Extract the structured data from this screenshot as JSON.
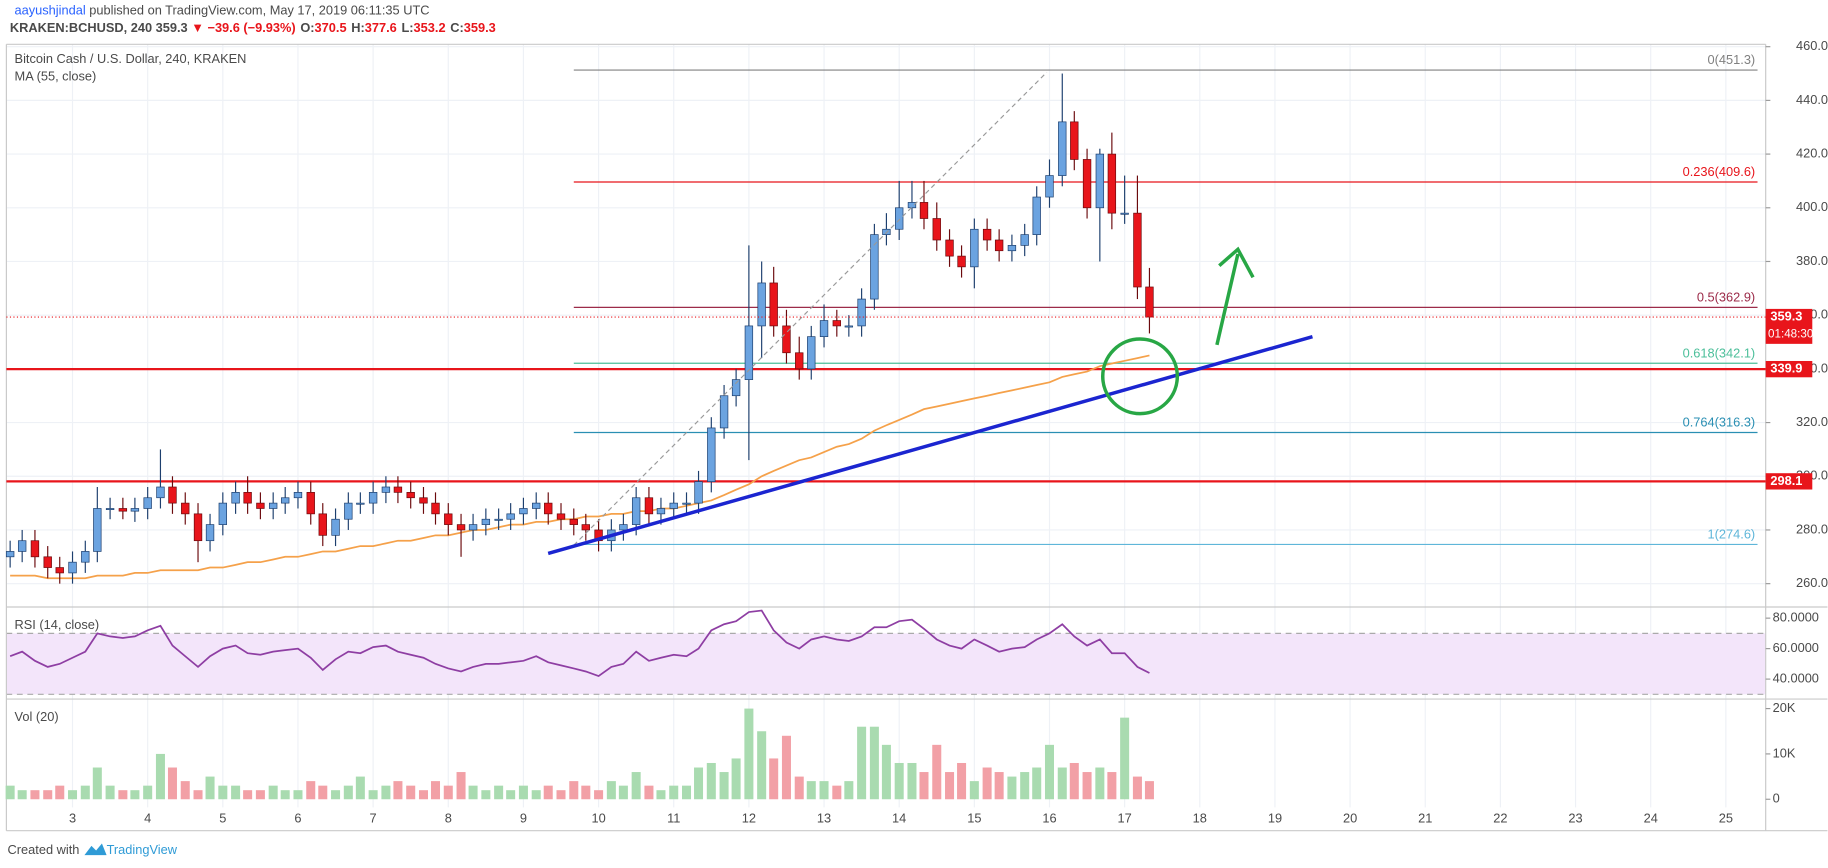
{
  "header": {
    "author": "aayushjindal",
    "published": "published on TradingView.com, May 17, 2019 06:11:35 UTC",
    "symbol": "KRAKEN:BCHUSD, 240",
    "price": "359.3",
    "change": "▼ −39.6 (−9.93%)",
    "ohlc": [
      {
        "label": "O:",
        "value": "370.5"
      },
      {
        "label": "H:",
        "value": "377.6"
      },
      {
        "label": "L:",
        "value": "353.2"
      },
      {
        "label": "C:",
        "value": "359.3"
      }
    ]
  },
  "chart_data": {
    "type": "candlestick",
    "title": "Bitcoin Cash / U.S. Dollar, 240, KRAKEN",
    "up_color": "#6ba3e0",
    "down_color": "#e8151b",
    "grid": true,
    "x": [
      2.17,
      2.33,
      2.5,
      2.67,
      2.83,
      3,
      3.17,
      3.33,
      3.5,
      3.67,
      3.83,
      4,
      4.17,
      4.33,
      4.5,
      4.67,
      4.83,
      5,
      5.17,
      5.33,
      5.5,
      5.67,
      5.83,
      6,
      6.17,
      6.33,
      6.5,
      6.67,
      6.83,
      7,
      7.17,
      7.33,
      7.5,
      7.67,
      7.83,
      8,
      8.17,
      8.33,
      8.5,
      8.67,
      8.83,
      9,
      9.17,
      9.33,
      9.5,
      9.67,
      9.83,
      10,
      10.17,
      10.33,
      10.5,
      10.67,
      10.83,
      11,
      11.17,
      11.33,
      11.5,
      11.67,
      11.83,
      12,
      12.17,
      12.33,
      12.5,
      12.67,
      12.83,
      13,
      13.17,
      13.33,
      13.5,
      13.67,
      13.83,
      14,
      14.17,
      14.33,
      14.5,
      14.67,
      14.83,
      15,
      15.17,
      15.33,
      15.5,
      15.67,
      15.83,
      16,
      16.17,
      16.33,
      16.5,
      16.67,
      16.83,
      17,
      17.17,
      17.33
    ],
    "open": [
      270,
      272,
      276,
      270,
      266,
      264,
      268,
      272,
      288,
      288,
      287,
      288,
      292,
      296,
      290,
      286,
      276,
      282,
      290,
      294,
      290,
      288,
      290,
      292,
      294,
      286,
      278,
      284,
      290,
      290,
      294,
      296,
      294,
      292,
      290,
      286,
      282,
      280,
      282,
      284,
      284,
      286,
      288,
      290,
      286,
      284,
      282,
      280,
      276,
      280,
      282,
      292,
      286,
      288,
      290,
      290,
      298,
      318,
      330,
      336,
      356,
      372,
      356,
      346,
      340,
      352,
      358,
      356,
      356,
      366,
      390,
      392,
      400,
      402,
      396,
      388,
      382,
      378,
      392,
      388,
      384,
      386,
      390,
      404,
      412,
      432,
      418,
      400,
      420,
      398,
      398,
      370.5
    ],
    "high": [
      276,
      280,
      280,
      274,
      270,
      272,
      276,
      296,
      292,
      292,
      292,
      296,
      310,
      300,
      294,
      290,
      286,
      294,
      298,
      300,
      294,
      294,
      296,
      298,
      298,
      290,
      288,
      294,
      294,
      298,
      300,
      300,
      298,
      296,
      294,
      290,
      286,
      286,
      288,
      288,
      290,
      292,
      294,
      294,
      290,
      288,
      286,
      284,
      284,
      286,
      296,
      296,
      292,
      294,
      294,
      302,
      322,
      334,
      340,
      386,
      380,
      378,
      362,
      352,
      356,
      364,
      362,
      360,
      370,
      394,
      398,
      410,
      410,
      410,
      402,
      392,
      386,
      396,
      396,
      392,
      390,
      394,
      408,
      418,
      450,
      436,
      422,
      422,
      428,
      412,
      412,
      377.6
    ],
    "low": [
      266,
      268,
      266,
      262,
      260,
      260,
      264,
      268,
      284,
      284,
      283,
      284,
      288,
      286,
      282,
      268,
      272,
      278,
      286,
      286,
      284,
      284,
      286,
      288,
      282,
      274,
      274,
      280,
      286,
      286,
      290,
      290,
      288,
      286,
      282,
      278,
      270,
      276,
      278,
      280,
      280,
      282,
      284,
      282,
      280,
      278,
      276,
      272,
      272,
      276,
      278,
      282,
      282,
      284,
      286,
      286,
      294,
      314,
      326,
      306,
      344,
      352,
      342,
      336,
      336,
      348,
      352,
      352,
      352,
      362,
      386,
      388,
      396,
      392,
      384,
      378,
      374,
      370,
      384,
      380,
      380,
      382,
      386,
      400,
      408,
      414,
      396,
      380,
      392,
      394,
      366,
      353.2
    ],
    "close": [
      272,
      276,
      270,
      266,
      264,
      268,
      272,
      288,
      288,
      287,
      288,
      292,
      296,
      290,
      286,
      276,
      282,
      290,
      294,
      290,
      288,
      290,
      292,
      294,
      286,
      278,
      284,
      290,
      290,
      294,
      296,
      294,
      292,
      290,
      286,
      282,
      280,
      282,
      284,
      284,
      286,
      288,
      290,
      286,
      284,
      282,
      280,
      276,
      280,
      282,
      292,
      286,
      288,
      290,
      290,
      298,
      318,
      330,
      336,
      356,
      372,
      356,
      346,
      340,
      352,
      358,
      356,
      356,
      366,
      390,
      392,
      400,
      402,
      396,
      388,
      382,
      378,
      392,
      388,
      384,
      386,
      390,
      404,
      412,
      432,
      418,
      400,
      420,
      398,
      398,
      370.5,
      359.3
    ],
    "ma": {
      "name": "MA (55, close)",
      "color": "#f5a14a",
      "values": [
        263,
        263,
        263,
        262,
        262,
        262,
        262,
        263,
        263,
        263,
        264,
        264,
        265,
        265,
        265,
        265,
        266,
        266,
        267,
        268,
        268,
        269,
        270,
        270,
        271,
        272,
        272,
        273,
        274,
        274,
        275,
        276,
        276,
        277,
        278,
        278,
        279,
        280,
        280,
        281,
        282,
        282,
        283,
        283,
        284,
        284,
        285,
        285,
        286,
        286,
        287,
        287,
        288,
        288,
        289,
        290,
        291,
        293,
        295,
        297,
        300,
        302,
        304,
        306,
        307,
        309,
        311,
        312,
        314,
        317,
        319,
        321,
        323,
        325,
        326,
        327,
        328,
        329,
        330,
        331,
        332,
        333,
        334,
        335,
        337,
        338,
        339,
        341,
        342,
        343,
        344,
        345
      ]
    },
    "countdown": "01:48:30",
    "xlim": [
      2.12,
      25.53
    ],
    "xticks": [
      3,
      4,
      5,
      6,
      7,
      8,
      9,
      10,
      11,
      12,
      13,
      14,
      15,
      16,
      17,
      18,
      19,
      20,
      21,
      22,
      23,
      24,
      25
    ],
    "ylim": [
      251.3,
      460.9
    ],
    "yticks": [
      {
        "value": 260,
        "label": "260.0"
      },
      {
        "value": 280,
        "label": "280.0"
      },
      {
        "value": 300,
        "label": "300.0"
      },
      {
        "value": 320,
        "label": "320.0"
      },
      {
        "value": 340,
        "label": "340.0"
      },
      {
        "value": 360,
        "label": "360.0"
      },
      {
        "value": 380,
        "label": "380.0"
      },
      {
        "value": 400,
        "label": "400.0"
      },
      {
        "value": 420,
        "label": "420.0"
      },
      {
        "value": 440,
        "label": "440.0"
      },
      {
        "value": 460,
        "label": "460.0"
      }
    ],
    "levels": [
      {
        "value": 339.9,
        "color": "#e8151b"
      },
      {
        "value": 298.1,
        "color": "#e8151b"
      }
    ],
    "fib": [
      {
        "label": "0(451.3)",
        "value": 451.3,
        "color": "#808080"
      },
      {
        "label": "0.236(409.6)",
        "value": 409.6,
        "color": "#e8151b"
      },
      {
        "label": "0.5(362.9)",
        "value": 362.9,
        "color": "#9c2b49"
      },
      {
        "label": "0.618(342.1)",
        "value": 342.1,
        "color": "#4cbf9a"
      },
      {
        "label": "0.764(316.3)",
        "value": 316.3,
        "color": "#2a8fb3"
      },
      {
        "label": "1(274.6)",
        "value": 274.6,
        "color": "#5fb6d9"
      }
    ],
    "rsi": {
      "name": "RSI (14, close)",
      "color": "#8e3ea3",
      "band": [
        30,
        70
      ],
      "ylim": [
        26.9,
        87.3
      ],
      "yticks": [
        {
          "value": 80,
          "label": "80.0000"
        },
        {
          "value": 60,
          "label": "60.0000"
        },
        {
          "value": 40,
          "label": "40.0000"
        }
      ],
      "values": [
        55,
        58,
        52,
        48,
        50,
        54,
        58,
        70,
        68,
        67,
        68,
        72,
        75,
        62,
        55,
        48,
        55,
        60,
        62,
        57,
        56,
        58,
        59,
        60,
        54,
        46,
        53,
        58,
        57,
        61,
        62,
        58,
        56,
        54,
        50,
        47,
        45,
        48,
        50,
        50,
        51,
        52,
        55,
        51,
        49,
        47,
        45,
        42,
        48,
        50,
        58,
        52,
        54,
        56,
        55,
        60,
        72,
        76,
        78,
        84,
        85,
        72,
        64,
        60,
        66,
        68,
        66,
        65,
        68,
        74,
        74,
        78,
        79,
        73,
        66,
        62,
        60,
        66,
        62,
        58,
        60,
        61,
        66,
        70,
        76,
        68,
        62,
        66,
        57,
        57,
        48,
        44
      ]
    },
    "volume": {
      "name": "Vol (20)",
      "up_color": "#a9dbb0",
      "down_color": "#f2a0a6",
      "ylim": [
        -1800,
        22100
      ],
      "yticks": [
        {
          "value": 20000,
          "label": "20K"
        },
        {
          "value": 10000,
          "label": "10K"
        },
        0
      ],
      "values": [
        3000,
        2000,
        2000,
        2000,
        3000,
        2000,
        3000,
        7000,
        3000,
        2000,
        2000,
        3000,
        10000,
        7000,
        4000,
        2000,
        5000,
        3000,
        3000,
        2000,
        2000,
        3000,
        2000,
        2000,
        4000,
        3000,
        2000,
        3000,
        5000,
        2000,
        3000,
        4000,
        3000,
        2000,
        4000,
        3000,
        6000,
        3000,
        2000,
        3000,
        2000,
        3000,
        2000,
        3000,
        2000,
        4000,
        3000,
        2000,
        4000,
        3000,
        6000,
        3000,
        2000,
        3000,
        3000,
        7000,
        8000,
        6000,
        9000,
        20000,
        15000,
        9000,
        14000,
        5000,
        4000,
        4000,
        3000,
        4000,
        16000,
        16000,
        12000,
        8000,
        8000,
        6000,
        12000,
        6000,
        8000,
        4000,
        7000,
        6000,
        5000,
        6000,
        7000,
        12000,
        7000,
        8000,
        6000,
        7000,
        6000,
        18000,
        5000,
        4000
      ]
    }
  },
  "footer": {
    "created": "Created with",
    "brand": "TradingView"
  }
}
